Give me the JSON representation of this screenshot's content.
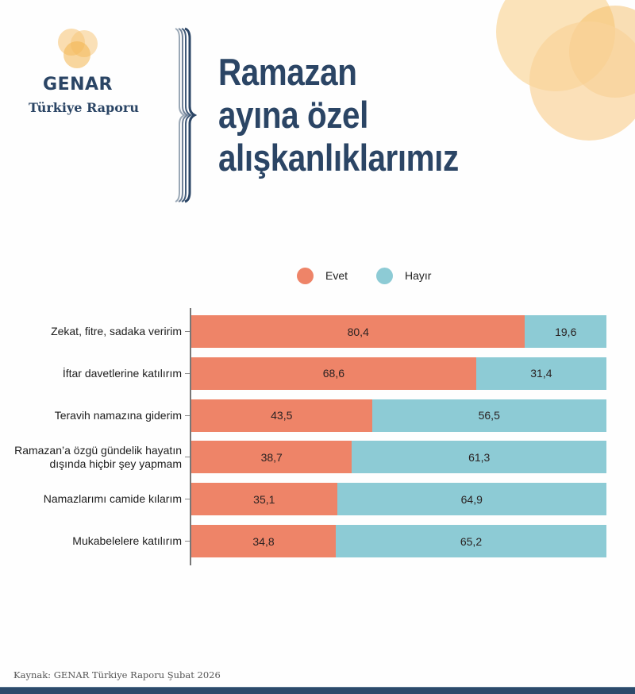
{
  "brand": {
    "name": "GENAR",
    "subtitle": "Türkiye Raporu",
    "colors": {
      "navy": "#2b4565",
      "orange_light": "#f9d9a3",
      "orange_mid": "#f4b85a"
    }
  },
  "title": {
    "lines": [
      "Ramazan",
      "ayına özel",
      "alışkanlıklarımız"
    ]
  },
  "legend": [
    {
      "label": "Evet",
      "color": "#ee8468"
    },
    {
      "label": "Hayır",
      "color": "#8dcbd5"
    }
  ],
  "chart_data": {
    "type": "bar",
    "orientation": "horizontal",
    "stacked": true,
    "normalized_percent": true,
    "title": "Ramazan ayına özel alışkanlıklarımız",
    "xlabel": "",
    "ylabel": "",
    "xlim": [
      0,
      100
    ],
    "grid": false,
    "legend_position": "top",
    "categories": [
      "Zekat, fitre, sadaka veririm",
      "İftar davetlerine katılırım",
      "Teravih namazına giderim",
      "Ramazan’a özgü gündelik hayatın dışında hiçbir şey yapmam",
      "Namazlarımı camide kılarım",
      "Mukabelelere katılırım"
    ],
    "series": [
      {
        "name": "Evet",
        "color": "#ee8468",
        "values": [
          80.4,
          68.6,
          43.5,
          38.7,
          35.1,
          34.8
        ]
      },
      {
        "name": "Hayır",
        "color": "#8dcbd5",
        "values": [
          19.6,
          31.4,
          56.5,
          61.3,
          64.9,
          65.2
        ]
      }
    ]
  },
  "rows": [
    {
      "label_lines": [
        "Zekat, fitre, sadaka veririm"
      ],
      "evet": 80.4,
      "hayir": 19.6,
      "evet_text": "80,4",
      "hayir_text": "19,6"
    },
    {
      "label_lines": [
        "İftar davetlerine katılırım"
      ],
      "evet": 68.6,
      "hayir": 31.4,
      "evet_text": "68,6",
      "hayir_text": "31,4"
    },
    {
      "label_lines": [
        "Teravih namazına giderim"
      ],
      "evet": 43.5,
      "hayir": 56.5,
      "evet_text": "43,5",
      "hayir_text": "56,5"
    },
    {
      "label_lines": [
        "Ramazan’a özgü gündelik hayatın",
        "dışında hiçbir şey yapmam"
      ],
      "evet": 38.7,
      "hayir": 61.3,
      "evet_text": "38,7",
      "hayir_text": "61,3"
    },
    {
      "label_lines": [
        "Namazlarımı camide kılarım"
      ],
      "evet": 35.1,
      "hayir": 64.9,
      "evet_text": "35,1",
      "hayir_text": "64,9"
    },
    {
      "label_lines": [
        "Mukabelelere katılırım"
      ],
      "evet": 34.8,
      "hayir": 65.2,
      "evet_text": "34,8",
      "hayir_text": "65,2"
    }
  ],
  "footer": {
    "source": "Kaynak: GENAR Türkiye Raporu Şubat 2026"
  }
}
